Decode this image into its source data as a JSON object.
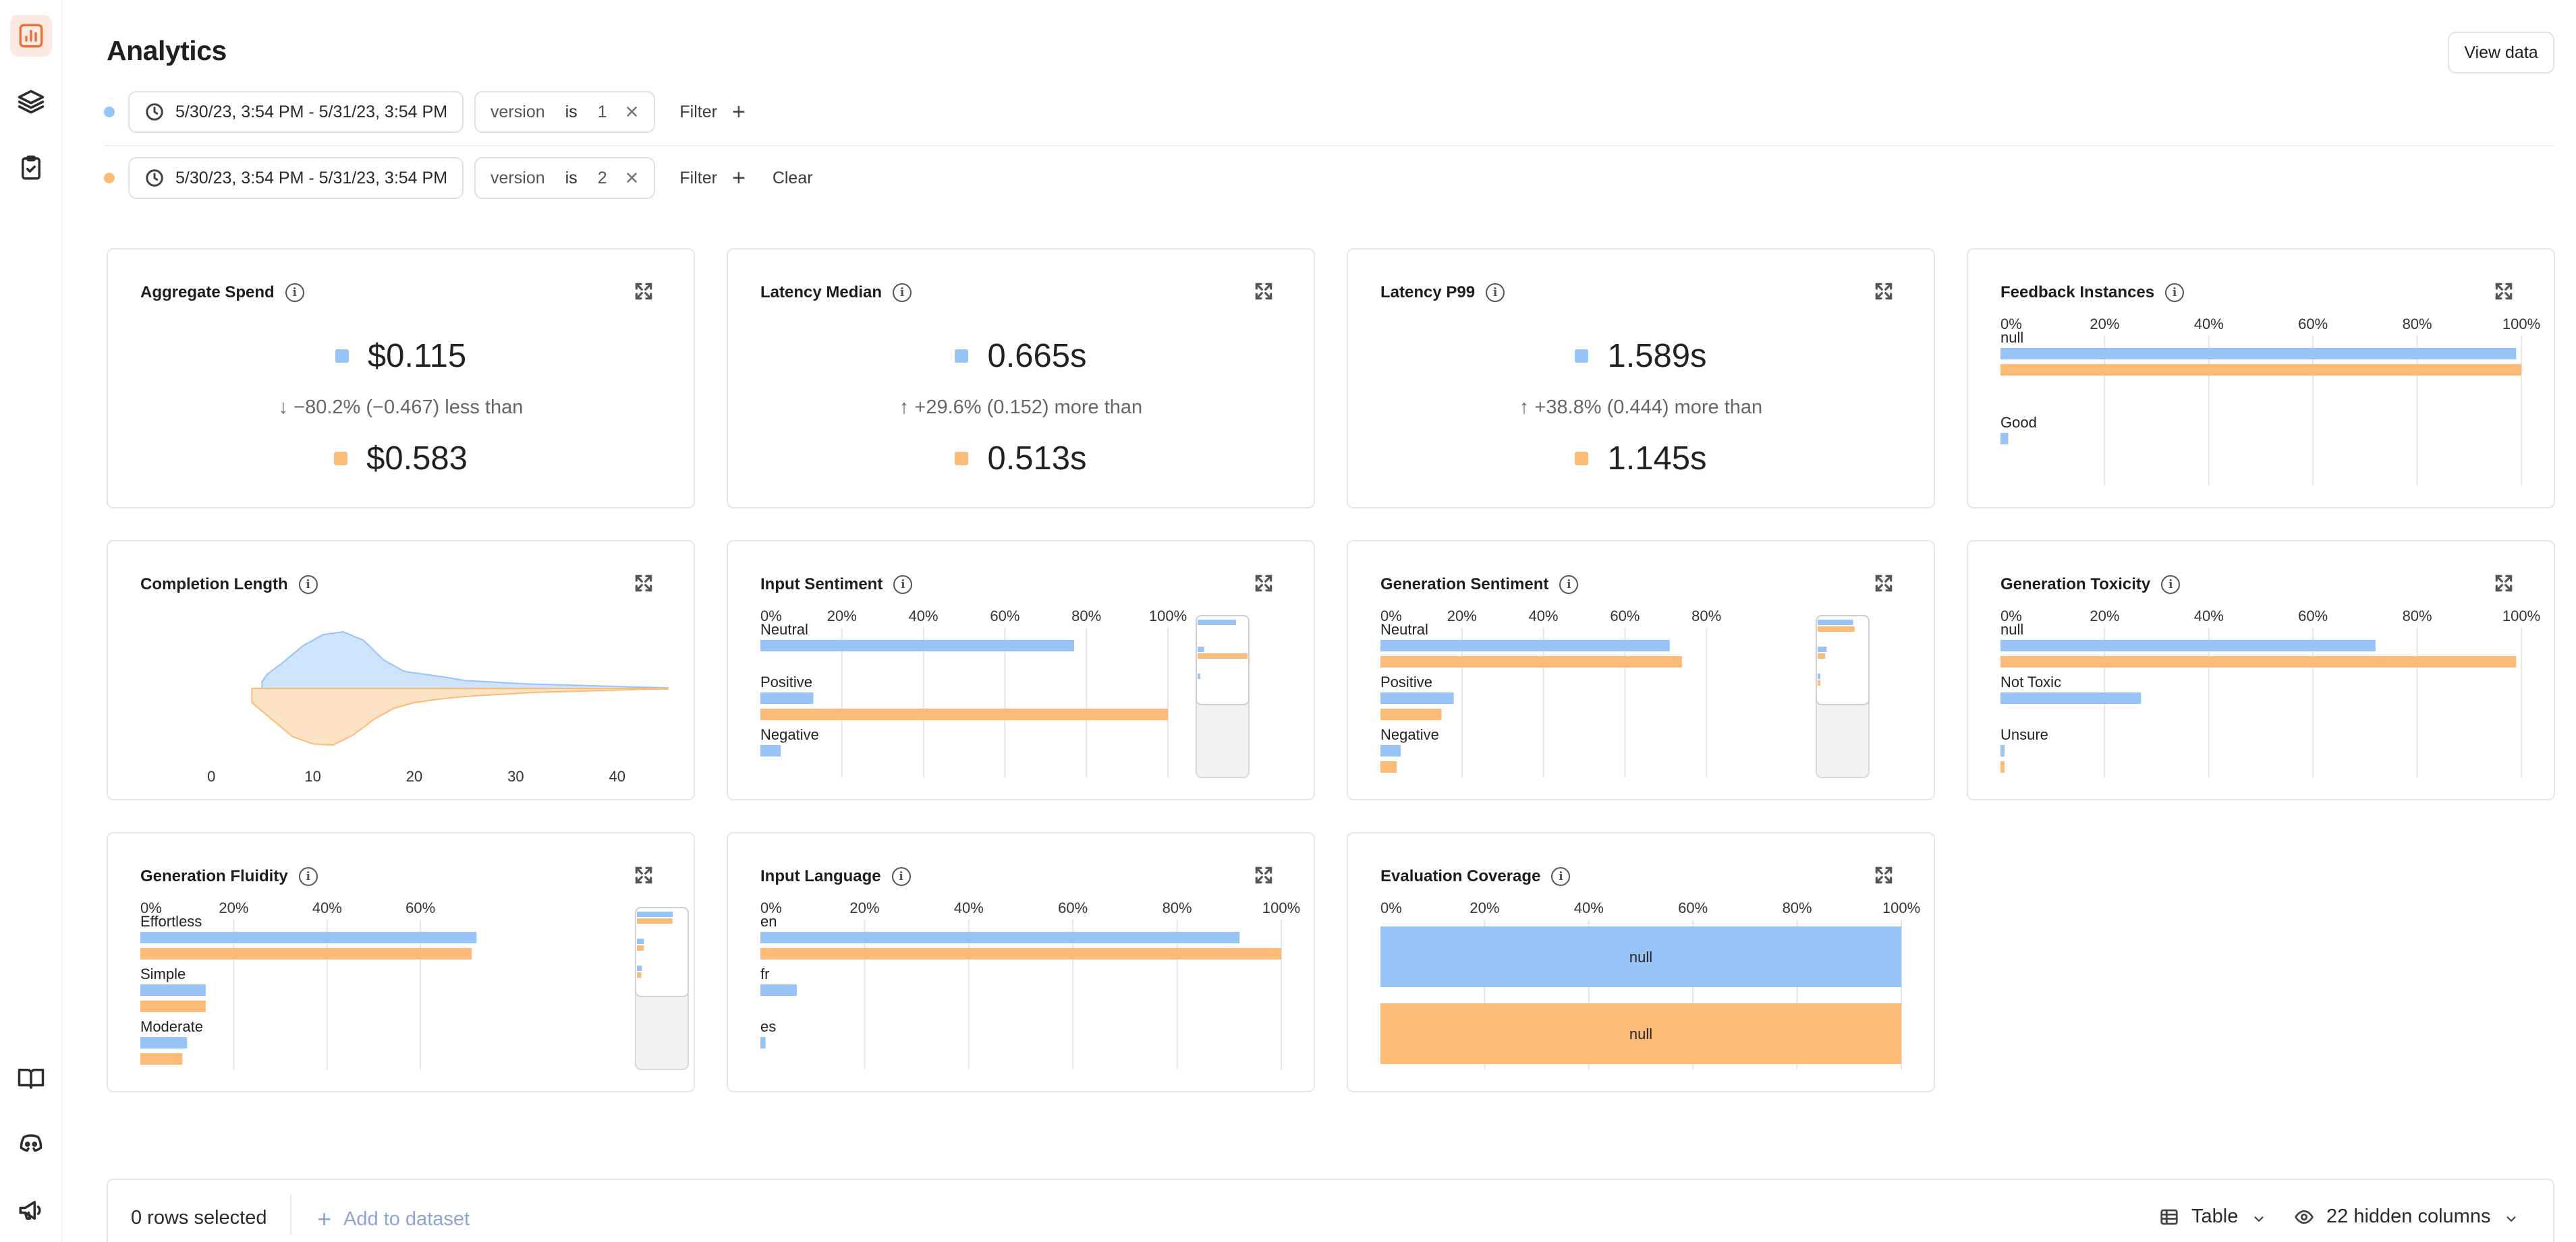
{
  "colors": {
    "blue": "#97c3f7",
    "orange": "#fbbb76",
    "accent": "#e8733a"
  },
  "sidebar": {
    "items": [
      {
        "icon": "bar-chart-icon",
        "active": true
      },
      {
        "icon": "layers-icon",
        "active": false
      },
      {
        "icon": "clipboard-check-icon",
        "active": false
      },
      {
        "icon": "book-icon",
        "active": false
      },
      {
        "icon": "discord-icon",
        "active": false
      },
      {
        "icon": "megaphone-icon",
        "active": false
      }
    ]
  },
  "header": {
    "title": "Analytics",
    "view_data_label": "View data"
  },
  "filters": [
    {
      "date_range": "5/30/23, 3:54 PM - 5/31/23, 3:54 PM",
      "key": "version",
      "op": "is",
      "value": "1",
      "filter_label": "Filter"
    },
    {
      "date_range": "5/30/23, 3:54 PM - 5/31/23, 3:54 PM",
      "key": "version",
      "op": "is",
      "value": "2",
      "filter_label": "Filter",
      "clear_label": "Clear"
    }
  ],
  "metrics": [
    {
      "title": "Aggregate Spend",
      "value_a": "$0.115",
      "compare": "↓ −80.2% (−0.467) less than",
      "value_b": "$0.583"
    },
    {
      "title": "Latency Median",
      "value_a": "0.665s",
      "compare": "↑ +29.6% (0.152) more than",
      "value_b": "0.513s"
    },
    {
      "title": "Latency P99",
      "value_a": "1.589s",
      "compare": "↑ +38.8% (0.444) more than",
      "value_b": "1.145s"
    }
  ],
  "charts": {
    "feedback_instances": {
      "title": "Feedback Instances"
    },
    "completion_length": {
      "title": "Completion Length"
    },
    "input_sentiment": {
      "title": "Input Sentiment"
    },
    "generation_sentiment": {
      "title": "Generation Sentiment"
    },
    "generation_toxicity": {
      "title": "Generation Toxicity"
    },
    "generation_fluidity": {
      "title": "Generation Fluidity"
    },
    "input_language": {
      "title": "Input Language"
    },
    "evaluation_coverage": {
      "title": "Evaluation Coverage"
    }
  },
  "chart_data": [
    {
      "id": "feedback_instances",
      "type": "bar",
      "xticks": [
        "0%",
        "20%",
        "40%",
        "60%",
        "80%",
        "100%"
      ],
      "categories": [
        "null",
        "Good"
      ],
      "series": [
        {
          "values": [
            99,
            1.5
          ]
        },
        {
          "values": [
            100,
            0
          ]
        }
      ]
    },
    {
      "id": "completion_length",
      "type": "area",
      "xticks": [
        "0",
        "10",
        "20",
        "30",
        "40"
      ],
      "xlim": [
        -5,
        45
      ],
      "series": [
        {
          "x": [
            5,
            5.5,
            7,
            9,
            11,
            13,
            15,
            17,
            19,
            21,
            23,
            25,
            27,
            29,
            31,
            33,
            35,
            37,
            39,
            41,
            43,
            45
          ],
          "values": [
            0.12,
            0.25,
            0.45,
            0.75,
            0.95,
            1.0,
            0.85,
            0.5,
            0.3,
            0.25,
            0.2,
            0.14,
            0.12,
            0.1,
            0.08,
            0.07,
            0.06,
            0.05,
            0.04,
            0.03,
            0.02,
            0.01
          ]
        },
        {
          "x": [
            4,
            6,
            8,
            10,
            12,
            14,
            16,
            18,
            20,
            22,
            24,
            26,
            28,
            30,
            32,
            34,
            36,
            38,
            40,
            42,
            44,
            45
          ],
          "values": [
            0.25,
            0.55,
            0.85,
            0.98,
            1.0,
            0.82,
            0.55,
            0.35,
            0.25,
            0.2,
            0.16,
            0.13,
            0.11,
            0.09,
            0.07,
            0.06,
            0.05,
            0.04,
            0.03,
            0.02,
            0.01,
            0.01
          ]
        }
      ]
    },
    {
      "id": "input_sentiment",
      "type": "bar",
      "xticks": [
        "0%",
        "20%",
        "40%",
        "60%",
        "80%",
        "100%"
      ],
      "categories": [
        "Neutral",
        "Positive",
        "Negative"
      ],
      "series": [
        {
          "values": [
            77,
            13,
            5
          ]
        },
        {
          "values": [
            0,
            100,
            0
          ]
        }
      ]
    },
    {
      "id": "generation_sentiment",
      "type": "bar",
      "xticks": [
        "0%",
        "20%",
        "40%",
        "60%",
        "80%"
      ],
      "categories": [
        "Neutral",
        "Positive",
        "Negative"
      ],
      "series": [
        {
          "values": [
            71,
            18,
            5
          ]
        },
        {
          "values": [
            74,
            15,
            4
          ]
        }
      ]
    },
    {
      "id": "generation_toxicity",
      "type": "bar",
      "xticks": [
        "0%",
        "20%",
        "40%",
        "60%",
        "80%",
        "100%"
      ],
      "categories": [
        "null",
        "Not Toxic",
        "Unsure"
      ],
      "series": [
        {
          "values": [
            72,
            27,
            0.5
          ]
        },
        {
          "values": [
            99,
            0,
            0.5
          ]
        }
      ]
    },
    {
      "id": "generation_fluidity",
      "type": "bar",
      "xticks": [
        "0%",
        "20%",
        "40%",
        "60%"
      ],
      "categories": [
        "Effortless",
        "Simple",
        "Moderate"
      ],
      "series": [
        {
          "values": [
            72,
            14,
            10
          ]
        },
        {
          "values": [
            71,
            14,
            9
          ]
        }
      ]
    },
    {
      "id": "input_language",
      "type": "bar",
      "xticks": [
        "0%",
        "20%",
        "40%",
        "60%",
        "80%",
        "100%"
      ],
      "categories": [
        "en",
        "fr",
        "es"
      ],
      "series": [
        {
          "values": [
            92,
            7,
            1
          ]
        },
        {
          "values": [
            100,
            0,
            0
          ]
        }
      ]
    },
    {
      "id": "evaluation_coverage",
      "type": "bar",
      "xticks": [
        "0%",
        "20%",
        "40%",
        "60%",
        "80%",
        "100%"
      ],
      "categories": [
        "null"
      ],
      "series": [
        {
          "values": [
            100
          ]
        },
        {
          "values": [
            100
          ]
        }
      ]
    }
  ],
  "bottom": {
    "rows_selected": "0 rows selected",
    "add_to_dataset": "Add to dataset",
    "table_label": "Table",
    "hidden_columns": "22 hidden columns"
  }
}
